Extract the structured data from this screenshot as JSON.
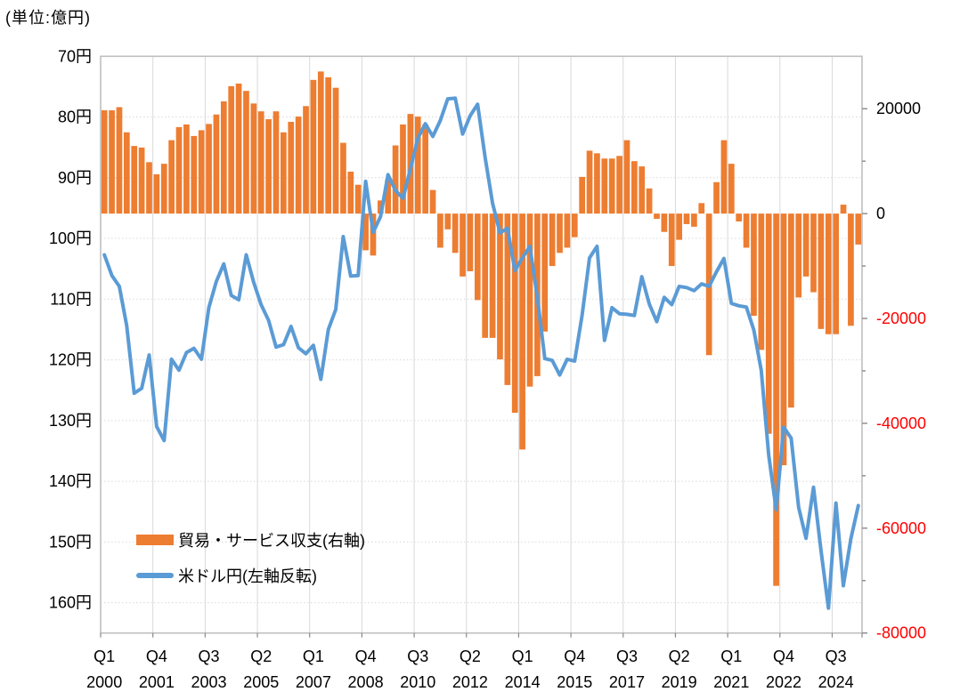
{
  "title": "(単位:億円)",
  "legend": {
    "items": [
      {
        "label": "貿易・サービス収支(右軸)",
        "type": "bar",
        "color": "#ED7D31"
      },
      {
        "label": "米ドル円(左軸反転)",
        "type": "line",
        "color": "#5B9BD5"
      }
    ]
  },
  "chart_data": {
    "type": "combo-bar-line",
    "frequency": "quarterly",
    "start_quarter": "2000-Q1",
    "end_quarter": "2025-Q2",
    "x_tick_step_quarters": 7,
    "x_tick_labels": [
      {
        "quarter": "Q1",
        "year": "2000"
      },
      {
        "quarter": "Q4",
        "year": "2001"
      },
      {
        "quarter": "Q3",
        "year": "2003"
      },
      {
        "quarter": "Q2",
        "year": "2005"
      },
      {
        "quarter": "Q1",
        "year": "2007"
      },
      {
        "quarter": "Q4",
        "year": "2008"
      },
      {
        "quarter": "Q3",
        "year": "2010"
      },
      {
        "quarter": "Q2",
        "year": "2012"
      },
      {
        "quarter": "Q1",
        "year": "2014"
      },
      {
        "quarter": "Q4",
        "year": "2015"
      },
      {
        "quarter": "Q3",
        "year": "2017"
      },
      {
        "quarter": "Q2",
        "year": "2019"
      },
      {
        "quarter": "Q1",
        "year": "2021"
      },
      {
        "quarter": "Q4",
        "year": "2022"
      },
      {
        "quarter": "Q3",
        "year": "2024"
      }
    ],
    "left_axis": {
      "title": "米ドル円",
      "inverted": true,
      "min": 70,
      "max": 165,
      "tick_values": [
        70,
        80,
        90,
        100,
        110,
        120,
        130,
        140,
        150,
        160
      ],
      "tick_labels": [
        "70円",
        "80円",
        "90円",
        "100円",
        "110円",
        "120円",
        "130円",
        "140円",
        "150円",
        "160円"
      ],
      "label_color": "#000000"
    },
    "right_axis": {
      "title": "貿易・サービス収支",
      "unit": "億円",
      "min": -80000,
      "max": 30000,
      "tick_values": [
        20000,
        0,
        -20000,
        -40000,
        -60000,
        -80000
      ],
      "tick_labels": [
        "20000",
        "0",
        "-20000",
        "-40000",
        "-60000",
        "-80000"
      ],
      "minor_tick_step": 10000,
      "positive_label_color": "#000000",
      "negative_label_color": "#FF0000"
    },
    "series": [
      {
        "name": "貿易・サービス収支(右軸)",
        "type": "bar",
        "axis": "right",
        "unit": "億円",
        "color": "#ED7D31",
        "values": [
          19700,
          19700,
          20300,
          15500,
          12900,
          12600,
          9800,
          7500,
          9500,
          14000,
          16500,
          17000,
          14800,
          15900,
          17100,
          18900,
          21400,
          24300,
          24800,
          23400,
          21000,
          19500,
          18000,
          19500,
          15500,
          17500,
          18500,
          20500,
          25500,
          27100,
          26000,
          24000,
          13500,
          8000,
          5500,
          -7000,
          -8000,
          2500,
          6500,
          13000,
          17000,
          19000,
          18500,
          17000,
          4500,
          -6500,
          -3000,
          -7500,
          -12000,
          -11000,
          -16500,
          -23700,
          -23700,
          -27800,
          -32700,
          -38000,
          -45000,
          -33000,
          -31000,
          -22500,
          -10000,
          -7500,
          -6500,
          -4500,
          7000,
          12000,
          11500,
          10500,
          10500,
          11000,
          14000,
          10000,
          9000,
          4800,
          -1000,
          -3500,
          -10000,
          -5000,
          -2000,
          -2500,
          2000,
          -27000,
          6000,
          14000,
          9500,
          -1500,
          -6500,
          -19500,
          -26000,
          -42000,
          -71000,
          -48000,
          -37000,
          -16000,
          -12000,
          -15000,
          -22000,
          -23000,
          -23000,
          1700,
          -21400,
          -5900
        ]
      },
      {
        "name": "米ドル円(左軸反転)",
        "type": "line",
        "axis": "left",
        "unit": "円",
        "color": "#5B9BD5",
        "values": [
          102.7,
          106.1,
          107.9,
          114.4,
          125.5,
          124.7,
          119.2,
          131.0,
          133.3,
          119.9,
          121.7,
          118.8,
          118.1,
          119.9,
          111.4,
          107.1,
          104.2,
          109.4,
          110.1,
          102.7,
          107.2,
          110.9,
          113.5,
          117.9,
          117.5,
          114.5,
          118.0,
          119.0,
          117.6,
          123.2,
          115.0,
          111.7,
          99.7,
          106.2,
          106.1,
          90.6,
          99.0,
          96.4,
          89.5,
          92.1,
          93.4,
          88.5,
          83.5,
          81.1,
          83.2,
          80.6,
          77.0,
          76.9,
          82.8,
          79.8,
          77.9,
          86.6,
          94.2,
          99.1,
          98.3,
          105.3,
          103.2,
          101.3,
          109.7,
          119.8,
          120.1,
          122.5,
          119.9,
          120.2,
          112.6,
          103.2,
          101.3,
          116.8,
          111.4,
          112.4,
          112.5,
          112.7,
          106.3,
          110.8,
          113.7,
          109.7,
          110.9,
          107.9,
          108.1,
          108.6,
          107.5,
          107.9,
          105.5,
          103.3,
          110.7,
          111.1,
          111.3,
          115.1,
          121.7,
          135.7,
          144.7,
          131.1,
          132.9,
          144.3,
          149.4,
          141.0,
          151.4,
          160.9,
          143.6,
          157.2,
          149.5,
          144.0
        ]
      }
    ],
    "grid": {
      "horizontal_dotted_at_left_ticks": true,
      "vertical_solid_at_x_ticks": true
    }
  },
  "colors": {
    "bar": "#ED7D31",
    "line": "#5B9BD5",
    "plot_border": "#BFBFBF",
    "axis_tick": "#898989",
    "gridline": "#D9D9D9",
    "negative_tick_label": "#FF0000",
    "tick_label": "#000000",
    "background": "#FFFFFF"
  }
}
